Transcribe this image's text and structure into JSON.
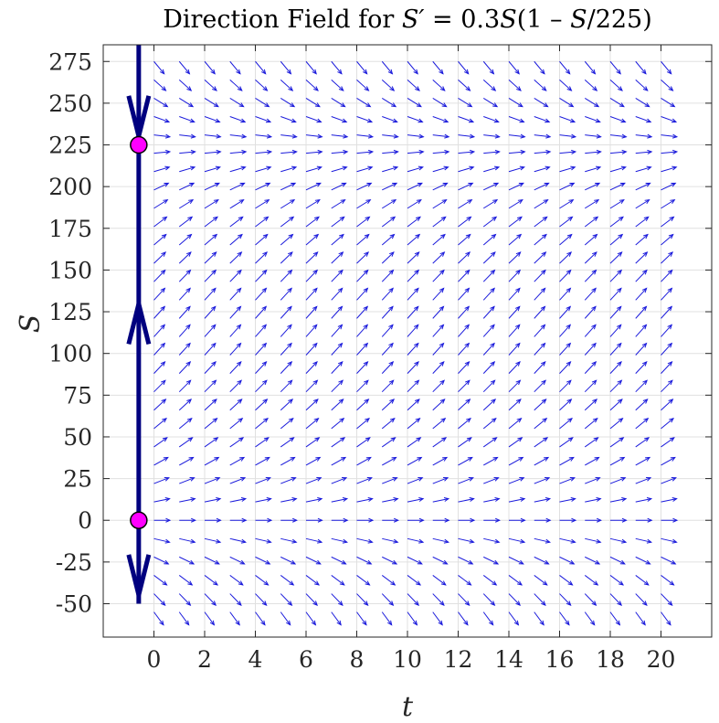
{
  "chart_data": {
    "type": "direction-field",
    "title": {
      "prefix": "Direction Field for ",
      "lhs": "S′",
      "rhs_start": " = 0.3",
      "var1": "S",
      "rhs_mid": "(1 – ",
      "var2": "S",
      "rhs_end": "/225)"
    },
    "xlabel": "t",
    "ylabel": "S",
    "xlim": [
      -2,
      22
    ],
    "ylim": [
      -70,
      285
    ],
    "xticks": [
      0,
      2,
      4,
      6,
      8,
      10,
      12,
      14,
      16,
      18,
      20
    ],
    "yticks": [
      -50,
      -25,
      0,
      25,
      50,
      75,
      100,
      125,
      150,
      175,
      200,
      225,
      250,
      275
    ],
    "ytick_labels": [
      "-50",
      "-25",
      "0",
      "25",
      "50",
      "75",
      "100",
      "125",
      "150",
      "175",
      "200",
      "225",
      "250",
      "275"
    ],
    "grid": true,
    "ode": {
      "r": 0.3,
      "K": 225
    },
    "field_grid": {
      "t_start": 0,
      "t_end": 20.5,
      "t_step": 1,
      "s_start": -55,
      "s_end": 275,
      "s_step": 11
    },
    "phase_line": {
      "t": -0.6,
      "s_range": [
        -50,
        290
      ],
      "equilibria": [
        0,
        225
      ],
      "arrows": [
        {
          "s": 250,
          "direction": "down"
        },
        {
          "s": 110,
          "direction": "up"
        },
        {
          "s": -25,
          "direction": "down"
        }
      ]
    },
    "colors": {
      "field": "#1a1adb",
      "phase_line": "#00007f",
      "equilibrium": "#ff00ff",
      "grid": "#e0e0e0",
      "axes": "#262626"
    }
  }
}
